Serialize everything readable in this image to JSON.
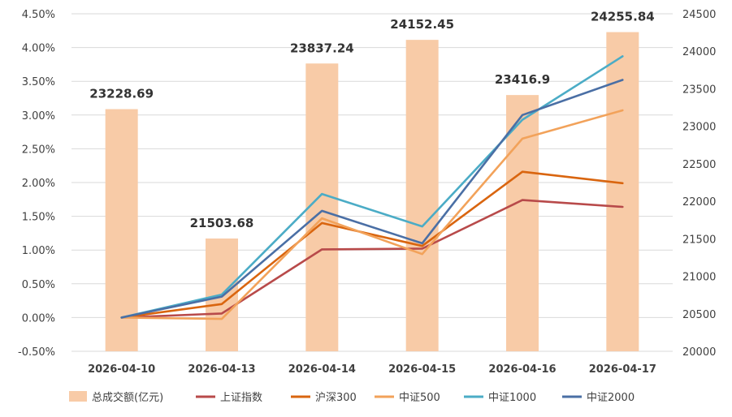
{
  "chart_data": {
    "type": "bar+line",
    "title": "",
    "categories": [
      "2026-04-10",
      "2026-04-13",
      "2026-04-14",
      "2026-04-15",
      "2026-04-16",
      "2026-04-17"
    ],
    "left_axis": {
      "min": -0.5,
      "max": 4.5,
      "step": 0.5,
      "format": "percent",
      "ticks": [
        "-0.50%",
        "0.00%",
        "0.50%",
        "1.00%",
        "1.50%",
        "2.00%",
        "2.50%",
        "3.00%",
        "3.50%",
        "4.00%",
        "4.50%"
      ]
    },
    "right_axis": {
      "min": 20000,
      "max": 24500,
      "step": 500,
      "ticks": [
        "20000",
        "20500",
        "21000",
        "21500",
        "22000",
        "22500",
        "23000",
        "23500",
        "24000",
        "24500"
      ]
    },
    "bar_series": {
      "name": "总成交额(亿元)",
      "axis": "right",
      "color": "#F8CBA7",
      "values": [
        23228.69,
        21503.68,
        23837.24,
        24152.45,
        23416.9,
        24255.84
      ],
      "labels": [
        "23228.69",
        "21503.68",
        "23837.24",
        "24152.45",
        "23416.9",
        "24255.84"
      ]
    },
    "line_series": [
      {
        "name": "上证指数",
        "color": "#B84A4A",
        "values": [
          0.0,
          0.06,
          1.01,
          1.02,
          1.74,
          1.64
        ]
      },
      {
        "name": "沪深300",
        "color": "#D9650F",
        "values": [
          0.0,
          0.2,
          1.4,
          1.06,
          2.16,
          1.99
        ]
      },
      {
        "name": "中证500",
        "color": "#F2A25A",
        "values": [
          0.0,
          -0.02,
          1.47,
          0.94,
          2.65,
          3.07
        ]
      },
      {
        "name": "中证1000",
        "color": "#4BACC6",
        "values": [
          0.0,
          0.34,
          1.83,
          1.35,
          2.93,
          3.87
        ]
      },
      {
        "name": "中证2000",
        "color": "#4A6FA5",
        "values": [
          0.0,
          0.31,
          1.58,
          1.1,
          3.0,
          3.52
        ]
      }
    ],
    "legend_position": "bottom",
    "grid": true
  }
}
